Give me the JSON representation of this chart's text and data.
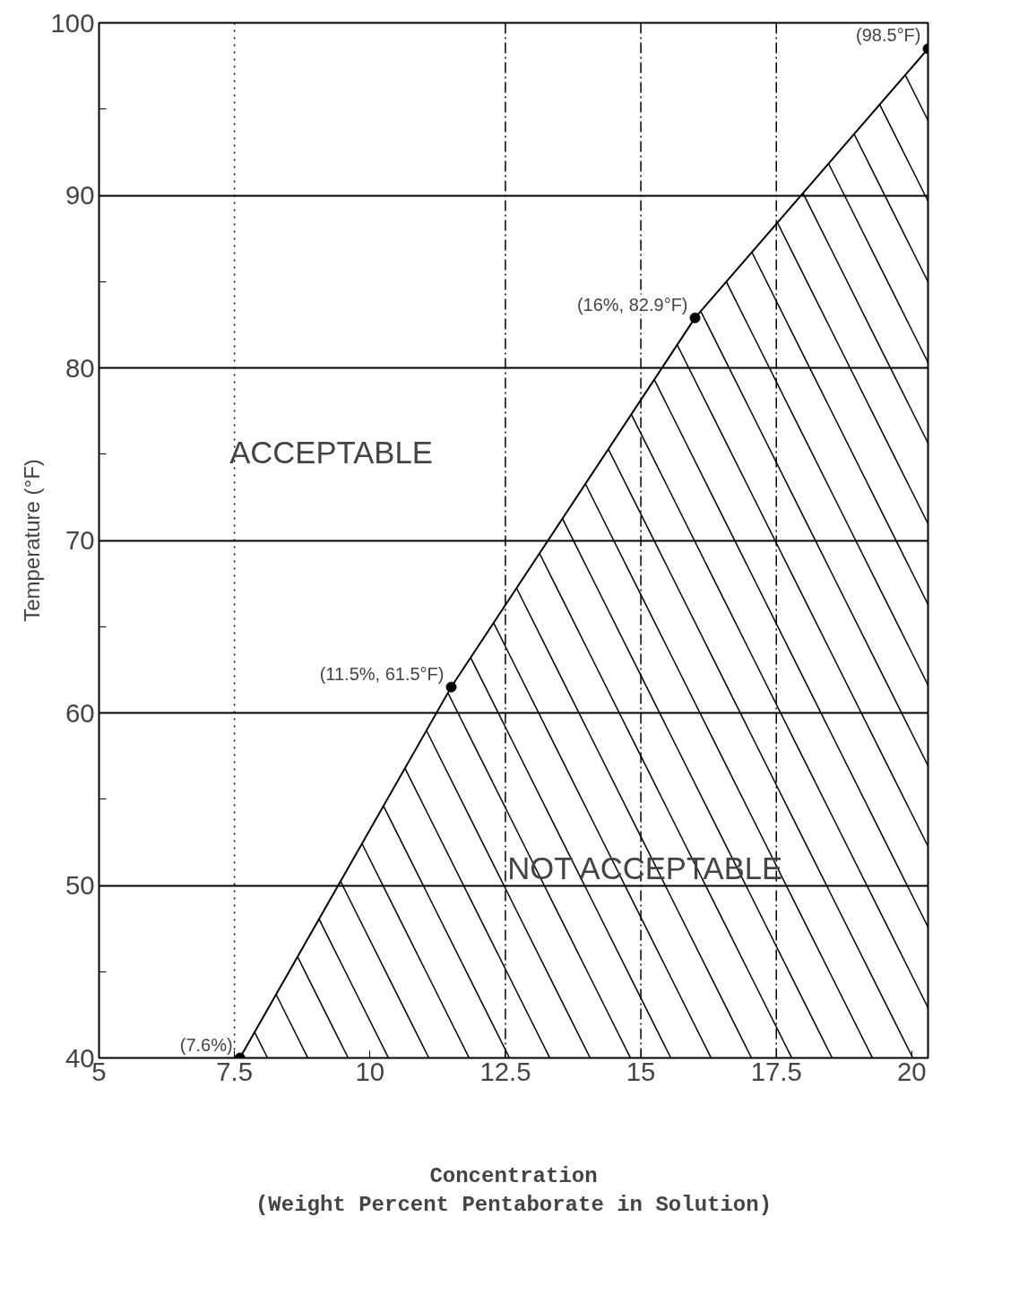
{
  "chart_data": {
    "type": "area",
    "xlabel": "Concentration\n(Weight Percent Pentaborate in Solution)",
    "ylabel": "Temperature (°F)",
    "x": [
      7.6,
      11.5,
      16,
      20.3
    ],
    "series": [
      {
        "color": "#000000",
        "values": [
          40,
          61.5,
          82.9,
          98.5
        ]
      }
    ],
    "marker": "circle",
    "xlim": [
      5,
      20.3
    ],
    "ylim": [
      40,
      100
    ],
    "xticks": [
      5,
      7.5,
      10,
      12.5,
      15,
      17.5,
      20
    ],
    "yticks": [
      40,
      {
        "value": 45,
        "label": null
      },
      50,
      {
        "value": 55,
        "label": null
      },
      60,
      {
        "value": 65,
        "label": null
      },
      70,
      {
        "value": 75,
        "label": null
      },
      80,
      {
        "value": 85,
        "label": null
      },
      90,
      {
        "value": 95,
        "label": null
      },
      100
    ],
    "grid": "y",
    "ref_lines": [
      {
        "axis": "x",
        "value": 7.5,
        "label": null,
        "line_style": "dotted"
      },
      {
        "axis": "x",
        "value": 12.5,
        "label": null,
        "line_style": "dashed"
      },
      {
        "axis": "x",
        "value": 15,
        "label": null,
        "line_style": "dashed"
      },
      {
        "axis": "x",
        "value": 17.5,
        "label": null,
        "line_style": "dashed"
      }
    ],
    "annotations": [
      {
        "text": "(7.6%)",
        "x": 7.6,
        "y": 40
      },
      {
        "text": "(11.5%, 61.5°F)",
        "x": 11.5,
        "y": 61.5
      },
      {
        "text": "(16%, 82.9°F)",
        "x": 16,
        "y": 82.9
      },
      {
        "text": "(98.5°F)",
        "x": 20.3,
        "y": 98.5
      },
      "ACCEPTABLE",
      "NOT ACCEPTABLE"
    ]
  }
}
